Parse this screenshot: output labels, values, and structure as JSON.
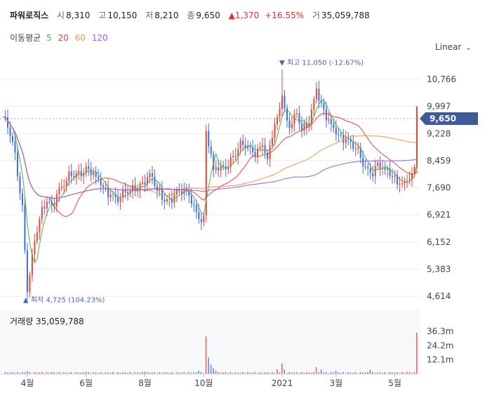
{
  "header": {
    "name": "파워로직스",
    "open_label": "시",
    "open": "8,310",
    "high_label": "고",
    "high": "10,150",
    "low_label": "저",
    "low": "8,210",
    "close_label": "종",
    "close": "9,650",
    "change": "1,370",
    "change_pct": "+16.55%",
    "volume_label": "거",
    "volume": "35,059,788"
  },
  "ma_legend": {
    "label": "이동평균",
    "items": [
      {
        "text": "5",
        "color": "#4caf50"
      },
      {
        "text": "20",
        "color": "#e8443a"
      },
      {
        "text": "60",
        "color": "#f0954a"
      },
      {
        "text": "120",
        "color": "#9b5de5"
      }
    ]
  },
  "scale_toggle": "Linear",
  "volume_panel": {
    "label": "거래량",
    "value": "35,059,788"
  },
  "chart_data": {
    "type": "candlestick",
    "price_ticks": [
      10766,
      9997,
      9228,
      8459,
      7690,
      6921,
      6152,
      5383,
      4614
    ],
    "price_tick_labels": [
      "10,766",
      "9,997",
      "9,228",
      "8,459",
      "7,690",
      "6,921",
      "6,152",
      "5,383",
      "4,614"
    ],
    "current_price": "9,650",
    "max_marker": "최고 11,050 (-12.67%)",
    "min_marker": "최저 4,725 (104.23%)",
    "volume_ticks": [
      "36.3m",
      "24.2m",
      "12.1m"
    ],
    "volume_tick_values": [
      36.3,
      24.2,
      12.1
    ],
    "x_labels": [
      "4월",
      "6월",
      "8월",
      "10월",
      "2021",
      "3월",
      "5월"
    ],
    "x_label_index": [
      10,
      34,
      58,
      82,
      114,
      136,
      160
    ],
    "anchors": [
      [
        0,
        9700
      ],
      [
        4,
        9000
      ],
      [
        8,
        7200
      ],
      [
        10,
        4725
      ],
      [
        12,
        5800
      ],
      [
        15,
        6800
      ],
      [
        18,
        7300
      ],
      [
        20,
        7200
      ],
      [
        22,
        7500
      ],
      [
        26,
        7900
      ],
      [
        30,
        8100
      ],
      [
        34,
        8300
      ],
      [
        38,
        8000
      ],
      [
        41,
        7700
      ],
      [
        44,
        7500
      ],
      [
        48,
        7400
      ],
      [
        52,
        7600
      ],
      [
        56,
        7800
      ],
      [
        60,
        8100
      ],
      [
        63,
        7600
      ],
      [
        66,
        7300
      ],
      [
        70,
        7500
      ],
      [
        75,
        7600
      ],
      [
        78,
        7200
      ],
      [
        80,
        6800
      ],
      [
        82,
        6900
      ],
      [
        83,
        9300
      ],
      [
        86,
        8200
      ],
      [
        90,
        8300
      ],
      [
        94,
        8600
      ],
      [
        98,
        8900
      ],
      [
        102,
        8700
      ],
      [
        106,
        8900
      ],
      [
        108,
        8500
      ],
      [
        110,
        9100
      ],
      [
        112,
        9700
      ],
      [
        114,
        10300
      ],
      [
        116,
        9600
      ],
      [
        118,
        9500
      ],
      [
        120,
        9800
      ],
      [
        122,
        9300
      ],
      [
        124,
        9400
      ],
      [
        126,
        9900
      ],
      [
        128,
        10500
      ],
      [
        130,
        10100
      ],
      [
        132,
        9600
      ],
      [
        134,
        9500
      ],
      [
        136,
        9200
      ],
      [
        140,
        9100
      ],
      [
        144,
        8800
      ],
      [
        147,
        8300
      ],
      [
        150,
        8100
      ],
      [
        153,
        8400
      ],
      [
        156,
        8200
      ],
      [
        159,
        8000
      ],
      [
        162,
        7800
      ],
      [
        165,
        7900
      ],
      [
        167,
        8100
      ],
      [
        168,
        8280
      ],
      [
        169,
        9650
      ]
    ],
    "volume_spikes": [
      [
        10,
        2.5
      ],
      [
        20,
        1.8
      ],
      [
        34,
        2.0
      ],
      [
        58,
        2.2
      ],
      [
        80,
        3.0
      ],
      [
        83,
        32.0
      ],
      [
        84,
        14.0
      ],
      [
        85,
        8.0
      ],
      [
        86,
        5.0
      ],
      [
        87,
        3.0
      ],
      [
        112,
        4.0
      ],
      [
        114,
        9.0
      ],
      [
        115,
        4.0
      ],
      [
        128,
        6.0
      ],
      [
        130,
        4.0
      ],
      [
        136,
        2.8
      ],
      [
        150,
        3.5
      ],
      [
        165,
        2.0
      ],
      [
        169,
        35.06
      ]
    ]
  }
}
